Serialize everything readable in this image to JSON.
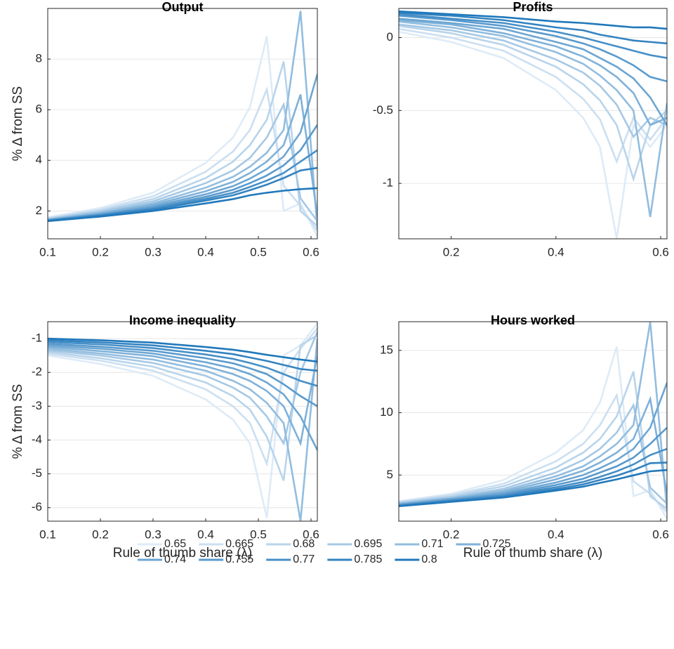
{
  "chart_data": [
    {
      "type": "line",
      "title": "Output",
      "ylabel": "% Δ from SS",
      "grid": true,
      "x": [
        0.1,
        0.2,
        0.3,
        0.4,
        0.452,
        0.484,
        0.516,
        0.548,
        0.58,
        0.612
      ],
      "xlim": [
        0.1,
        0.612
      ],
      "xticks": [
        0.1,
        0.2,
        0.3,
        0.4,
        0.5,
        0.6
      ],
      "ylim": [
        0.9,
        10
      ],
      "yticks": [
        2,
        4,
        6,
        8
      ],
      "series": [
        {
          "name": "0.65",
          "color": "#deebf7",
          "values": [
            1.75,
            2.12,
            2.72,
            3.9,
            4.9,
            6.1,
            8.9,
            2.0,
            2.3,
            1.0
          ]
        },
        {
          "name": "0.665",
          "color": "#cbdff1",
          "values": [
            1.72,
            2.06,
            2.58,
            3.55,
            4.35,
            5.2,
            6.8,
            3.0,
            2.2,
            1.2
          ]
        },
        {
          "name": "0.68",
          "color": "#b8d4eb",
          "values": [
            1.7,
            2.01,
            2.47,
            3.3,
            3.95,
            4.6,
            5.6,
            7.9,
            2.0,
            1.4
          ]
        },
        {
          "name": "0.695",
          "color": "#a5c8e5",
          "values": [
            1.68,
            1.97,
            2.38,
            3.1,
            3.6,
            4.1,
            4.9,
            6.2,
            2.5,
            1.6
          ]
        },
        {
          "name": "0.71",
          "color": "#92bddf",
          "values": [
            1.66,
            1.93,
            2.3,
            2.92,
            3.35,
            3.75,
            4.3,
            5.2,
            9.9,
            1.3
          ]
        },
        {
          "name": "0.725",
          "color": "#7fb1d9",
          "values": [
            1.65,
            1.9,
            2.24,
            2.78,
            3.15,
            3.5,
            3.95,
            4.6,
            6.6,
            1.8
          ]
        },
        {
          "name": "0.74",
          "color": "#6ca6d3",
          "values": [
            1.64,
            1.87,
            2.18,
            2.66,
            2.98,
            3.28,
            3.65,
            4.15,
            5.1,
            7.4
          ]
        },
        {
          "name": "0.755",
          "color": "#599acd",
          "values": [
            1.63,
            1.85,
            2.13,
            2.56,
            2.84,
            3.1,
            3.4,
            3.8,
            4.4,
            5.4
          ]
        },
        {
          "name": "0.77",
          "color": "#468fc7",
          "values": [
            1.62,
            1.83,
            2.09,
            2.48,
            2.72,
            2.95,
            3.2,
            3.5,
            3.95,
            4.4
          ]
        },
        {
          "name": "0.785",
          "color": "#3383c1",
          "values": [
            1.61,
            1.81,
            2.05,
            2.41,
            2.62,
            2.82,
            3.04,
            3.3,
            3.6,
            3.7
          ]
        },
        {
          "name": "0.8",
          "color": "#2078bb",
          "values": [
            1.6,
            1.78,
            2.0,
            2.3,
            2.47,
            2.62,
            2.72,
            2.8,
            2.86,
            2.9
          ]
        }
      ]
    },
    {
      "type": "line",
      "title": "Profits",
      "grid": true,
      "x": [
        0.1,
        0.2,
        0.3,
        0.4,
        0.452,
        0.484,
        0.516,
        0.548,
        0.58,
        0.612
      ],
      "xlim": [
        0.1,
        0.612
      ],
      "xticks": [
        0.2,
        0.4,
        0.6
      ],
      "ylim": [
        -1.38,
        0.2
      ],
      "yticks": [
        -1,
        -0.5,
        0
      ],
      "series": [
        {
          "values": [
            0.04,
            -0.03,
            -0.14,
            -0.36,
            -0.55,
            -0.75,
            -1.38,
            -0.6,
            -0.75,
            -0.6
          ]
        },
        {
          "values": [
            0.06,
            0.0,
            -0.09,
            -0.27,
            -0.42,
            -0.56,
            -0.85,
            -0.55,
            -0.7,
            -0.55
          ]
        },
        {
          "values": [
            0.08,
            0.03,
            -0.05,
            -0.2,
            -0.32,
            -0.43,
            -0.6,
            -0.97,
            -0.6,
            -0.5
          ]
        },
        {
          "values": [
            0.09,
            0.05,
            -0.02,
            -0.15,
            -0.24,
            -0.33,
            -0.46,
            -0.68,
            -0.55,
            -0.6
          ]
        },
        {
          "values": [
            0.11,
            0.07,
            0.01,
            -0.1,
            -0.18,
            -0.26,
            -0.36,
            -0.5,
            -1.23,
            -0.45
          ]
        },
        {
          "values": [
            0.12,
            0.09,
            0.03,
            -0.06,
            -0.13,
            -0.19,
            -0.27,
            -0.38,
            -0.6,
            -0.55
          ]
        },
        {
          "values": [
            0.13,
            0.1,
            0.06,
            -0.03,
            -0.08,
            -0.14,
            -0.2,
            -0.28,
            -0.41,
            -0.6
          ]
        },
        {
          "values": [
            0.15,
            0.12,
            0.08,
            0.01,
            -0.04,
            -0.08,
            -0.13,
            -0.19,
            -0.27,
            -0.3
          ]
        },
        {
          "values": [
            0.16,
            0.13,
            0.1,
            0.04,
            0.0,
            -0.03,
            -0.06,
            -0.09,
            -0.12,
            -0.14
          ]
        },
        {
          "values": [
            0.17,
            0.15,
            0.12,
            0.07,
            0.05,
            0.02,
            0.0,
            -0.02,
            -0.03,
            -0.04
          ]
        },
        {
          "values": [
            0.18,
            0.16,
            0.14,
            0.11,
            0.1,
            0.09,
            0.08,
            0.07,
            0.07,
            0.06
          ]
        }
      ]
    },
    {
      "type": "line",
      "title": "Income inequality",
      "ylabel": "% Δ from SS",
      "xlabel": "Rule of thumb share (λ)",
      "grid": true,
      "x": [
        0.1,
        0.2,
        0.3,
        0.4,
        0.452,
        0.484,
        0.516,
        0.548,
        0.58,
        0.612
      ],
      "xlim": [
        0.1,
        0.612
      ],
      "xticks": [
        0.1,
        0.2,
        0.3,
        0.4,
        0.5,
        0.6
      ],
      "ylim": [
        -6.4,
        -0.5
      ],
      "yticks": [
        -6,
        -5,
        -4,
        -3,
        -2,
        -1
      ],
      "series": [
        {
          "values": [
            -1.5,
            -1.75,
            -2.1,
            -2.8,
            -3.4,
            -4.1,
            -6.3,
            -1.5,
            -1.2,
            -0.55
          ]
        },
        {
          "values": [
            -1.45,
            -1.65,
            -1.95,
            -2.5,
            -3.0,
            -3.5,
            -4.7,
            -2.0,
            -1.3,
            -0.7
          ]
        },
        {
          "values": [
            -1.4,
            -1.58,
            -1.83,
            -2.3,
            -2.7,
            -3.1,
            -3.9,
            -5.2,
            -1.2,
            -0.9
          ]
        },
        {
          "values": [
            -1.35,
            -1.5,
            -1.72,
            -2.1,
            -2.45,
            -2.75,
            -3.3,
            -4.1,
            -2.0,
            -0.8
          ]
        },
        {
          "values": [
            -1.3,
            -1.44,
            -1.62,
            -1.95,
            -2.25,
            -2.5,
            -2.9,
            -3.5,
            -6.4,
            -1.0
          ]
        },
        {
          "values": [
            -1.25,
            -1.37,
            -1.52,
            -1.82,
            -2.05,
            -2.25,
            -2.55,
            -3.0,
            -4.1,
            -1.5
          ]
        },
        {
          "values": [
            -1.2,
            -1.3,
            -1.44,
            -1.7,
            -1.88,
            -2.05,
            -2.3,
            -2.65,
            -3.3,
            -4.3
          ]
        },
        {
          "values": [
            -1.15,
            -1.24,
            -1.36,
            -1.58,
            -1.73,
            -1.88,
            -2.05,
            -2.35,
            -2.7,
            -3.0
          ]
        },
        {
          "values": [
            -1.1,
            -1.17,
            -1.28,
            -1.47,
            -1.6,
            -1.72,
            -1.86,
            -2.05,
            -2.25,
            -2.4
          ]
        },
        {
          "values": [
            -1.05,
            -1.11,
            -1.2,
            -1.36,
            -1.46,
            -1.56,
            -1.66,
            -1.78,
            -1.9,
            -1.95
          ]
        },
        {
          "values": [
            -1.0,
            -1.05,
            -1.12,
            -1.25,
            -1.33,
            -1.4,
            -1.48,
            -1.55,
            -1.62,
            -1.68
          ]
        }
      ]
    },
    {
      "type": "line",
      "title": "Hours worked",
      "xlabel": "Rule of thumb share (λ)",
      "grid": true,
      "x": [
        0.1,
        0.2,
        0.3,
        0.4,
        0.452,
        0.484,
        0.516,
        0.548,
        0.58,
        0.612
      ],
      "xlim": [
        0.1,
        0.612
      ],
      "xticks": [
        0.2,
        0.4,
        0.6
      ],
      "ylim": [
        1.3,
        17.3
      ],
      "yticks": [
        5,
        10,
        15
      ],
      "series": [
        {
          "values": [
            2.9,
            3.5,
            4.6,
            6.8,
            8.6,
            10.8,
            15.3,
            3.3,
            3.8,
            1.5
          ]
        },
        {
          "values": [
            2.85,
            3.4,
            4.3,
            6.1,
            7.5,
            9.0,
            11.4,
            4.5,
            3.5,
            2.0
          ]
        },
        {
          "values": [
            2.8,
            3.3,
            4.1,
            5.6,
            6.8,
            7.9,
            9.7,
            13.3,
            3.3,
            2.3
          ]
        },
        {
          "values": [
            2.75,
            3.2,
            3.9,
            5.2,
            6.2,
            7.1,
            8.4,
            10.6,
            4.0,
            2.7
          ]
        },
        {
          "values": [
            2.7,
            3.15,
            3.75,
            4.9,
            5.7,
            6.5,
            7.5,
            9.0,
            17.3,
            2.2
          ]
        },
        {
          "values": [
            2.66,
            3.1,
            3.63,
            4.65,
            5.35,
            6.0,
            6.8,
            7.9,
            11.1,
            3.5
          ]
        },
        {
          "values": [
            2.62,
            3.05,
            3.52,
            4.4,
            5.0,
            5.55,
            6.2,
            7.1,
            8.8,
            12.4
          ]
        },
        {
          "values": [
            2.58,
            3.0,
            3.43,
            4.2,
            4.7,
            5.2,
            5.7,
            6.4,
            7.5,
            8.8
          ]
        },
        {
          "values": [
            2.55,
            2.95,
            3.35,
            4.02,
            4.45,
            4.85,
            5.3,
            5.85,
            6.6,
            7.1
          ]
        },
        {
          "values": [
            2.52,
            2.9,
            3.27,
            3.87,
            4.25,
            4.6,
            4.95,
            5.4,
            5.95,
            6.0
          ]
        },
        {
          "values": [
            2.5,
            2.85,
            3.2,
            3.75,
            4.07,
            4.37,
            4.65,
            4.98,
            5.3,
            5.4
          ]
        }
      ]
    }
  ]
}
